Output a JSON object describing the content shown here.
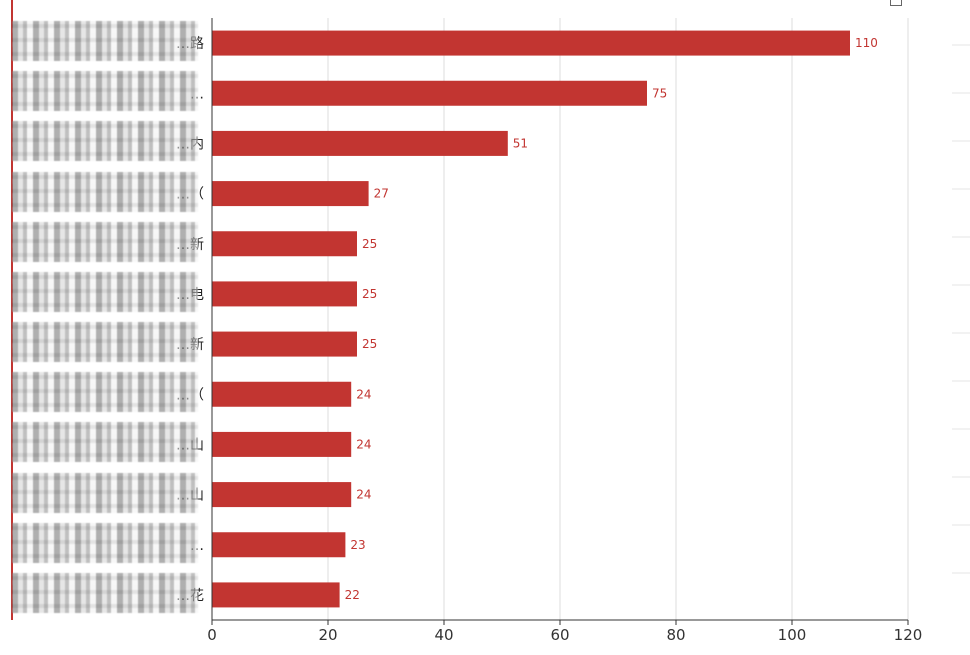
{
  "colors": {
    "bar": "#c23531",
    "axis": "#333333",
    "grid": "#dddddd",
    "label": "#c23531"
  },
  "chart_data": {
    "type": "bar",
    "orientation": "horizontal",
    "title": "",
    "categories": [
      "…路",
      "…",
      "…内",
      "…（",
      "…新",
      "…电",
      "…新",
      "…（",
      "…山",
      "…山",
      "…",
      "…花"
    ],
    "values": [
      110,
      75,
      51,
      27,
      25,
      25,
      25,
      24,
      24,
      24,
      23,
      22
    ],
    "xlim": [
      0,
      120
    ],
    "xticks": [
      0,
      20,
      40,
      60,
      80,
      100,
      120
    ],
    "grid": true
  }
}
